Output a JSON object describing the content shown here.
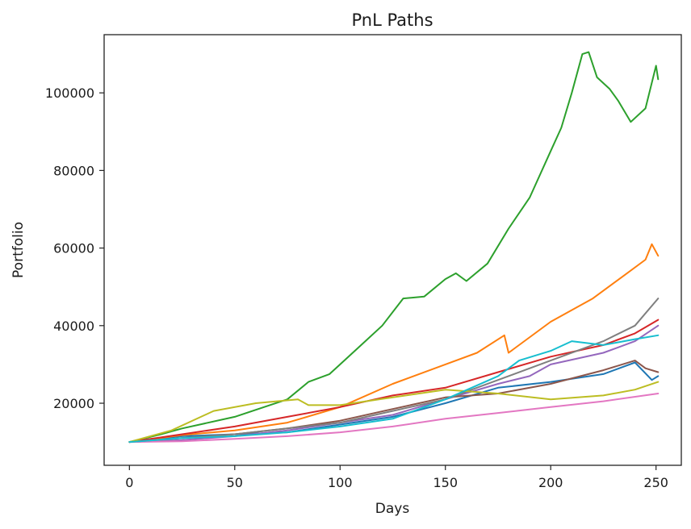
{
  "chart_data": {
    "type": "line",
    "title": "PnL Paths",
    "xlabel": "Days",
    "ylabel": "Portfolio",
    "xlim": [
      -12,
      262
    ],
    "ylim": [
      4000,
      115000
    ],
    "xticks": [
      0,
      50,
      100,
      150,
      200,
      250
    ],
    "yticks": [
      20000,
      40000,
      60000,
      80000,
      100000
    ],
    "grid": false,
    "legend": "none",
    "series": [
      {
        "color": "#1f77b4",
        "points": [
          [
            0,
            10000
          ],
          [
            25,
            11500
          ],
          [
            50,
            12000
          ],
          [
            75,
            12500
          ],
          [
            100,
            14500
          ],
          [
            125,
            16500
          ],
          [
            150,
            20000
          ],
          [
            175,
            24000
          ],
          [
            200,
            25500
          ],
          [
            225,
            27500
          ],
          [
            240,
            30500
          ],
          [
            248,
            26000
          ],
          [
            251,
            27000
          ]
        ]
      },
      {
        "color": "#ff7f0e",
        "points": [
          [
            0,
            10000
          ],
          [
            25,
            11800
          ],
          [
            50,
            13000
          ],
          [
            75,
            15000
          ],
          [
            100,
            19000
          ],
          [
            125,
            25000
          ],
          [
            150,
            30000
          ],
          [
            165,
            33000
          ],
          [
            178,
            37500
          ],
          [
            180,
            33000
          ],
          [
            200,
            41000
          ],
          [
            220,
            47000
          ],
          [
            235,
            53000
          ],
          [
            245,
            57000
          ],
          [
            248,
            61000
          ],
          [
            251,
            58000
          ]
        ]
      },
      {
        "color": "#2ca02c",
        "points": [
          [
            0,
            10000
          ],
          [
            15,
            12000
          ],
          [
            25,
            13500
          ],
          [
            50,
            16500
          ],
          [
            75,
            21000
          ],
          [
            85,
            25500
          ],
          [
            95,
            27500
          ],
          [
            100,
            30000
          ],
          [
            110,
            35000
          ],
          [
            120,
            40000
          ],
          [
            130,
            47000
          ],
          [
            140,
            47500
          ],
          [
            150,
            52000
          ],
          [
            155,
            53500
          ],
          [
            160,
            51500
          ],
          [
            170,
            56000
          ],
          [
            180,
            65000
          ],
          [
            190,
            73000
          ],
          [
            200,
            85000
          ],
          [
            205,
            91000
          ],
          [
            210,
            100000
          ],
          [
            215,
            110000
          ],
          [
            218,
            110500
          ],
          [
            222,
            104000
          ],
          [
            228,
            101000
          ],
          [
            232,
            98000
          ],
          [
            238,
            92500
          ],
          [
            245,
            96000
          ],
          [
            250,
            107000
          ],
          [
            251,
            103500
          ]
        ]
      },
      {
        "color": "#d62728",
        "points": [
          [
            0,
            10000
          ],
          [
            25,
            12000
          ],
          [
            50,
            14000
          ],
          [
            75,
            16500
          ],
          [
            100,
            19000
          ],
          [
            125,
            22000
          ],
          [
            150,
            24000
          ],
          [
            175,
            28000
          ],
          [
            200,
            32000
          ],
          [
            225,
            35000
          ],
          [
            240,
            38000
          ],
          [
            251,
            41500
          ]
        ]
      },
      {
        "color": "#9467bd",
        "points": [
          [
            0,
            10000
          ],
          [
            25,
            10500
          ],
          [
            50,
            11500
          ],
          [
            75,
            13000
          ],
          [
            100,
            15000
          ],
          [
            125,
            17000
          ],
          [
            150,
            21000
          ],
          [
            175,
            25000
          ],
          [
            190,
            27000
          ],
          [
            200,
            30000
          ],
          [
            225,
            33000
          ],
          [
            240,
            36000
          ],
          [
            251,
            40000
          ]
        ]
      },
      {
        "color": "#8c564b",
        "points": [
          [
            0,
            10000
          ],
          [
            25,
            11000
          ],
          [
            50,
            12000
          ],
          [
            75,
            13500
          ],
          [
            100,
            15500
          ],
          [
            125,
            18500
          ],
          [
            150,
            21500
          ],
          [
            175,
            22500
          ],
          [
            200,
            25000
          ],
          [
            225,
            28500
          ],
          [
            240,
            31000
          ],
          [
            245,
            29000
          ],
          [
            251,
            28000
          ]
        ]
      },
      {
        "color": "#e377c2",
        "points": [
          [
            0,
            10000
          ],
          [
            25,
            10200
          ],
          [
            50,
            10800
          ],
          [
            75,
            11500
          ],
          [
            100,
            12500
          ],
          [
            125,
            14000
          ],
          [
            150,
            16000
          ],
          [
            175,
            17500
          ],
          [
            200,
            19000
          ],
          [
            225,
            20500
          ],
          [
            251,
            22500
          ]
        ]
      },
      {
        "color": "#7f7f7f",
        "points": [
          [
            0,
            10000
          ],
          [
            25,
            11000
          ],
          [
            50,
            12000
          ],
          [
            75,
            13500
          ],
          [
            100,
            15000
          ],
          [
            125,
            18000
          ],
          [
            150,
            21000
          ],
          [
            175,
            26000
          ],
          [
            200,
            31000
          ],
          [
            225,
            36000
          ],
          [
            240,
            40000
          ],
          [
            251,
            47000
          ]
        ]
      },
      {
        "color": "#bcbd22",
        "points": [
          [
            0,
            10000
          ],
          [
            20,
            13000
          ],
          [
            40,
            18000
          ],
          [
            60,
            20000
          ],
          [
            80,
            21000
          ],
          [
            85,
            19500
          ],
          [
            100,
            19500
          ],
          [
            125,
            21500
          ],
          [
            150,
            23500
          ],
          [
            175,
            22500
          ],
          [
            200,
            21000
          ],
          [
            225,
            22000
          ],
          [
            240,
            23500
          ],
          [
            251,
            25500
          ]
        ]
      },
      {
        "color": "#17becf",
        "points": [
          [
            0,
            10000
          ],
          [
            25,
            11000
          ],
          [
            50,
            11500
          ],
          [
            75,
            12500
          ],
          [
            100,
            14000
          ],
          [
            125,
            16000
          ],
          [
            150,
            21000
          ],
          [
            175,
            27000
          ],
          [
            185,
            31000
          ],
          [
            200,
            33500
          ],
          [
            210,
            36000
          ],
          [
            225,
            35000
          ],
          [
            240,
            36500
          ],
          [
            251,
            37500
          ]
        ]
      }
    ]
  }
}
